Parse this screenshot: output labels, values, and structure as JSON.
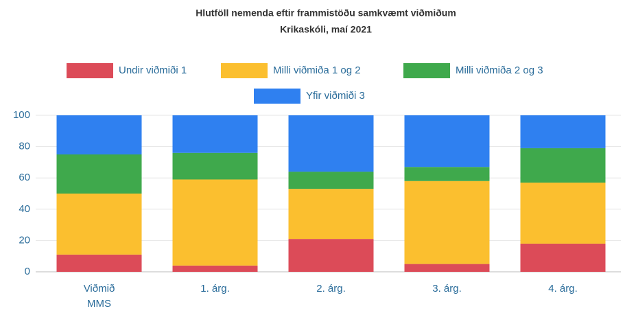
{
  "chart_data": {
    "type": "stacked_bar",
    "title": "Hlutföll nemenda eftir frammistöðu samkvæmt viðmiðum",
    "subtitle": "Krikaskóli, maí 2021",
    "categories": [
      "Viðmið MMS",
      "1. árg.",
      "2. árg.",
      "3. árg.",
      "4. árg."
    ],
    "series": [
      {
        "name": "Undir viðmiði 1",
        "color": "#dc4b58",
        "values": [
          11,
          4,
          21,
          5,
          18
        ]
      },
      {
        "name": "Milli viðmiða 1 og 2",
        "color": "#fbbf2f",
        "values": [
          39,
          55,
          32,
          53,
          39
        ]
      },
      {
        "name": "Milli viðmiða 2 og 3",
        "color": "#3fa94c",
        "values": [
          25,
          17,
          11,
          9,
          22
        ]
      },
      {
        "name": "Yfir viðmiði 3",
        "color": "#2f80f0",
        "values": [
          25,
          24,
          36,
          33,
          21
        ]
      }
    ],
    "ylim": [
      0,
      100
    ],
    "yticks": [
      0,
      20,
      40,
      60,
      80,
      100
    ],
    "grid": true
  }
}
